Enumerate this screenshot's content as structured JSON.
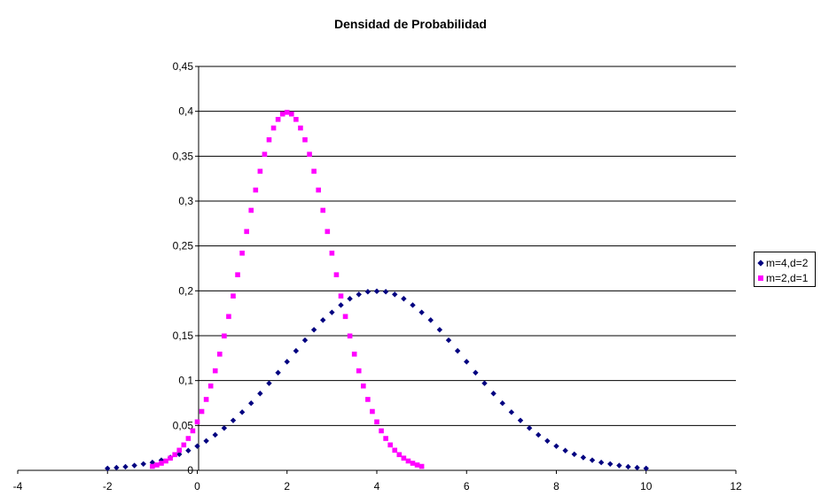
{
  "chart_data": {
    "type": "scatter",
    "title": "Densidad de Probabilidad",
    "xlabel": "",
    "ylabel": "",
    "xlim": [
      -4,
      12
    ],
    "ylim": [
      0,
      0.45
    ],
    "x_ticks": [
      "-4",
      "-2",
      "0",
      "2",
      "4",
      "6",
      "8",
      "10",
      "12"
    ],
    "y_ticks": [
      "0",
      "0,05",
      "0,1",
      "0,15",
      "0,2",
      "0,25",
      "0,3",
      "0,35",
      "0,4",
      "0,45"
    ],
    "grid": "horizontal",
    "legend_position": "right",
    "series": [
      {
        "name": "m=4,d=2",
        "marker": "diamond",
        "color": "#000080",
        "x": [
          -2.0,
          -1.8,
          -1.6,
          -1.4,
          -1.2,
          -1.0,
          -0.8,
          -0.6,
          -0.4,
          -0.2,
          0.0,
          0.2,
          0.4,
          0.6,
          0.8,
          1.0,
          1.2,
          1.4,
          1.6,
          1.8,
          2.0,
          2.2,
          2.4,
          2.6,
          2.8,
          3.0,
          3.2,
          3.4,
          3.6,
          3.8,
          4.0,
          4.2,
          4.4,
          4.6,
          4.8,
          5.0,
          5.2,
          5.4,
          5.6,
          5.8,
          6.0,
          6.2,
          6.4,
          6.6,
          6.8,
          7.0,
          7.2,
          7.4,
          7.6,
          7.8,
          8.0,
          8.2,
          8.4,
          8.6,
          8.8,
          9.0,
          9.2,
          9.4,
          9.6,
          9.8,
          10.0
        ],
        "y": [
          0.0022,
          0.003,
          0.004,
          0.0054,
          0.0071,
          0.0088,
          0.0113,
          0.0143,
          0.0179,
          0.022,
          0.027,
          0.0328,
          0.0395,
          0.0471,
          0.0556,
          0.0648,
          0.0748,
          0.0856,
          0.097,
          0.1088,
          0.121,
          0.1331,
          0.145,
          0.1566,
          0.1674,
          0.176,
          0.1841,
          0.1912,
          0.196,
          0.199,
          0.1995,
          0.199,
          0.196,
          0.1912,
          0.1841,
          0.176,
          0.1674,
          0.1566,
          0.145,
          0.1331,
          0.121,
          0.1088,
          0.097,
          0.0856,
          0.0748,
          0.0648,
          0.0556,
          0.0471,
          0.0395,
          0.0328,
          0.027,
          0.022,
          0.0179,
          0.0143,
          0.0113,
          0.0088,
          0.0071,
          0.0054,
          0.004,
          0.003,
          0.0022
        ]
      },
      {
        "name": "m=2,d=1",
        "marker": "square",
        "color": "#FF00FF",
        "x": [
          -1.0,
          -0.9,
          -0.8,
          -0.7,
          -0.6,
          -0.5,
          -0.4,
          -0.3,
          -0.2,
          -0.1,
          0.0,
          0.1,
          0.2,
          0.3,
          0.4,
          0.5,
          0.6,
          0.7,
          0.8,
          0.9,
          1.0,
          1.1,
          1.2,
          1.3,
          1.4,
          1.5,
          1.6,
          1.7,
          1.8,
          1.9,
          2.0,
          2.1,
          2.2,
          2.3,
          2.4,
          2.5,
          2.6,
          2.7,
          2.8,
          2.9,
          3.0,
          3.1,
          3.2,
          3.3,
          3.4,
          3.5,
          3.6,
          3.7,
          3.8,
          3.9,
          4.0,
          4.1,
          4.2,
          4.3,
          4.4,
          4.5,
          4.6,
          4.7,
          4.8,
          4.9,
          5.0
        ],
        "y": [
          0.0044,
          0.006,
          0.0079,
          0.0104,
          0.0136,
          0.0175,
          0.0224,
          0.0283,
          0.0355,
          0.044,
          0.054,
          0.0656,
          0.079,
          0.094,
          0.1109,
          0.1295,
          0.1497,
          0.1714,
          0.1942,
          0.2179,
          0.242,
          0.2661,
          0.2897,
          0.3123,
          0.3332,
          0.3521,
          0.3683,
          0.3814,
          0.391,
          0.397,
          0.3989,
          0.397,
          0.391,
          0.3814,
          0.3683,
          0.3521,
          0.3332,
          0.3123,
          0.2897,
          0.2661,
          0.242,
          0.2179,
          0.1942,
          0.1714,
          0.1497,
          0.1295,
          0.1109,
          0.094,
          0.079,
          0.0656,
          0.054,
          0.044,
          0.0355,
          0.0283,
          0.0224,
          0.0175,
          0.0136,
          0.0104,
          0.0079,
          0.006,
          0.0044
        ]
      }
    ]
  }
}
